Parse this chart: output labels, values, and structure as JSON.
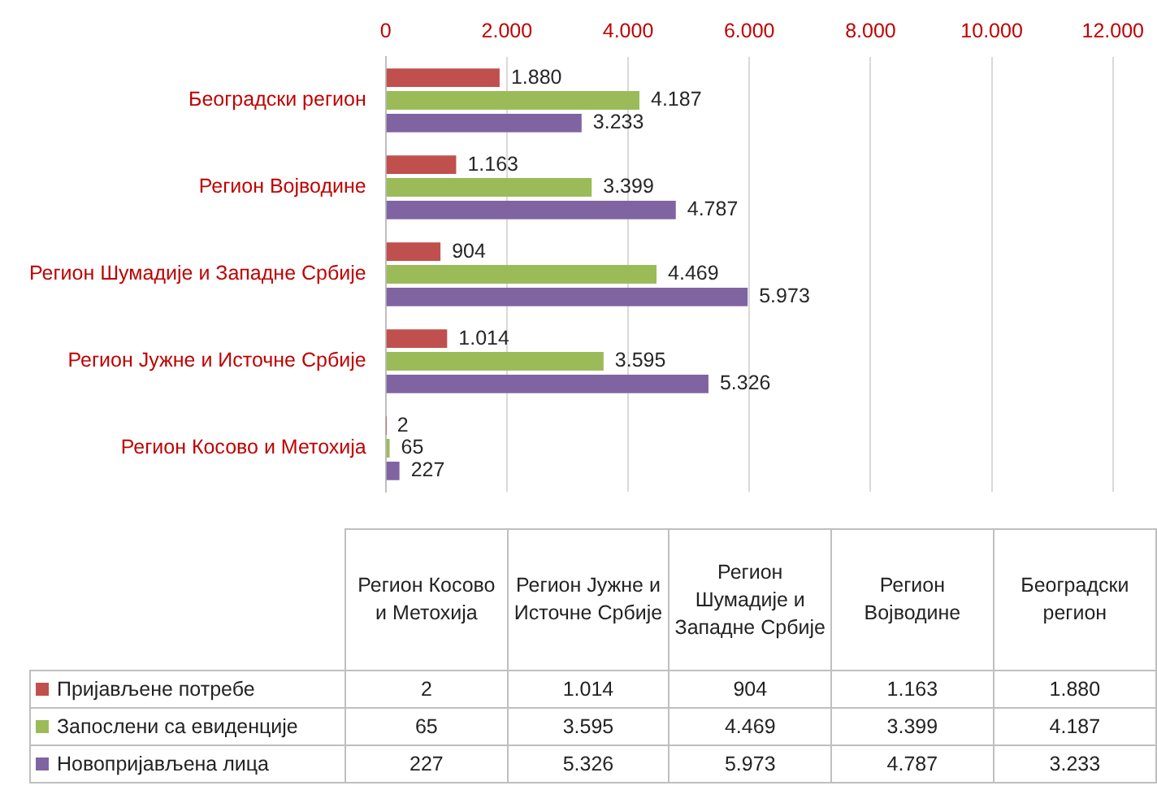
{
  "chart_data": {
    "type": "bar",
    "orientation": "horizontal",
    "categories": [
      "Београдски регион",
      "Регион Војводине",
      "Регион Шумадије и Западне Србије",
      "Регион Јужне и Источне Србије",
      "Регион Косово и Метохија"
    ],
    "series": [
      {
        "name": "Пријављене потребе",
        "color": "#c0504d",
        "values": [
          1880,
          1163,
          904,
          1014,
          2
        ],
        "value_labels": [
          "1.880",
          "1.163",
          "904",
          "1.014",
          "2"
        ]
      },
      {
        "name": "Запослени са евиденције",
        "color": "#9bbb59",
        "values": [
          4187,
          3399,
          4469,
          3595,
          65
        ],
        "value_labels": [
          "4.187",
          "3.399",
          "4.469",
          "3.595",
          "65"
        ]
      },
      {
        "name": "Новопријављена лица",
        "color": "#8064a2",
        "values": [
          3233,
          4787,
          5973,
          5326,
          227
        ],
        "value_labels": [
          "3.233",
          "4.787",
          "5.973",
          "5.326",
          "227"
        ]
      }
    ],
    "xlim": [
      0,
      12000
    ],
    "xticks": [
      0,
      {
        "value": 2000,
        "label": "2.000"
      },
      {
        "value": 4000,
        "label": "4.000"
      },
      {
        "value": 6000,
        "label": "6.000"
      },
      {
        "value": 8000,
        "label": "8.000"
      },
      {
        "value": 10000,
        "label": "10.000"
      },
      {
        "value": 12000,
        "label": "12.000"
      }
    ],
    "grid": "x",
    "legend": "bottom"
  }
}
